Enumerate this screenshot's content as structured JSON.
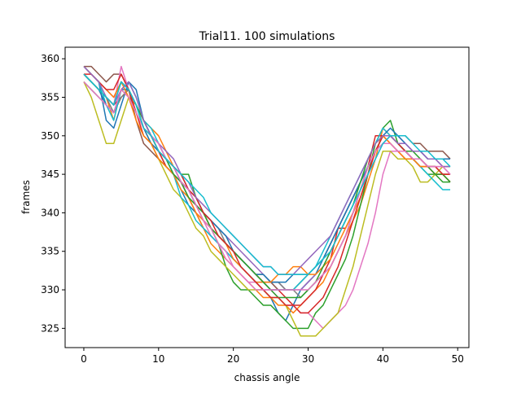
{
  "chart_data": {
    "type": "line",
    "title": "Trial11. 100 simulations",
    "xlabel": "chassis angle",
    "ylabel": "frames",
    "xlim": [
      -2.5,
      51.5
    ],
    "ylim": [
      322.5,
      361.5
    ],
    "xticks": [
      0,
      10,
      20,
      30,
      40,
      50
    ],
    "yticks": [
      325,
      330,
      335,
      340,
      345,
      350,
      355,
      360
    ],
    "grid": false,
    "x": [
      0,
      1,
      2,
      3,
      4,
      5,
      6,
      7,
      8,
      9,
      10,
      11,
      12,
      13,
      14,
      15,
      16,
      17,
      18,
      19,
      20,
      21,
      22,
      23,
      24,
      25,
      26,
      27,
      28,
      29,
      30,
      31,
      32,
      33,
      34,
      35,
      36,
      37,
      38,
      39,
      40,
      41,
      42,
      43,
      44,
      45,
      46,
      47,
      48,
      49
    ],
    "series": [
      {
        "color": "#1f77b4",
        "values": [
          359,
          358,
          357,
          352,
          351,
          354,
          357,
          356,
          352,
          350,
          348,
          346,
          345,
          343,
          341,
          340,
          338,
          337,
          336,
          335,
          334,
          333,
          332,
          331,
          330,
          329,
          327,
          326,
          328,
          330,
          331,
          332,
          334,
          336,
          338,
          340,
          342,
          344,
          346,
          348,
          350,
          350,
          349,
          348,
          347,
          347,
          346,
          346,
          345,
          345
        ]
      },
      {
        "color": "#ff7f0e",
        "values": [
          358,
          357,
          356,
          355,
          352,
          356,
          355,
          354,
          352,
          351,
          350,
          348,
          346,
          344,
          342,
          340,
          338,
          336,
          335,
          334,
          333,
          332,
          331,
          330,
          329,
          329,
          328,
          328,
          327,
          328,
          329,
          330,
          331,
          333,
          335,
          337,
          339,
          341,
          344,
          347,
          351,
          350,
          349,
          348,
          347,
          346,
          346,
          345,
          345,
          344
        ]
      },
      {
        "color": "#2ca02c",
        "values": [
          357,
          356,
          355,
          354,
          353,
          355,
          356,
          354,
          351,
          350,
          348,
          347,
          346,
          345,
          345,
          342,
          340,
          338,
          336,
          333,
          331,
          330,
          330,
          329,
          328,
          328,
          327,
          326,
          325,
          325,
          325,
          327,
          328,
          330,
          332,
          334,
          337,
          341,
          345,
          349,
          351,
          352,
          349,
          348,
          347,
          346,
          345,
          345,
          344,
          344
        ]
      },
      {
        "color": "#d62728",
        "values": [
          358,
          357,
          356,
          355,
          354,
          355,
          356,
          353,
          350,
          349,
          348,
          346,
          345,
          344,
          343,
          341,
          340,
          338,
          337,
          336,
          335,
          334,
          333,
          332,
          331,
          330,
          330,
          329,
          328,
          328,
          329,
          330,
          332,
          334,
          338,
          338,
          340,
          343,
          346,
          350,
          350,
          349,
          348,
          347,
          347,
          346,
          346,
          345,
          345,
          344
        ]
      },
      {
        "color": "#9467bd",
        "values": [
          359,
          358,
          357,
          356,
          355,
          357,
          356,
          354,
          352,
          350,
          349,
          347,
          346,
          344,
          343,
          341,
          340,
          339,
          338,
          337,
          336,
          335,
          334,
          333,
          332,
          331,
          331,
          330,
          330,
          330,
          331,
          332,
          333,
          335,
          337,
          339,
          341,
          343,
          345,
          347,
          349,
          350,
          350,
          349,
          348,
          348,
          347,
          347,
          346,
          346
        ]
      },
      {
        "color": "#8c564b",
        "values": [
          359,
          359,
          358,
          357,
          358,
          358,
          356,
          352,
          349,
          348,
          347,
          346,
          345,
          344,
          342,
          341,
          339,
          338,
          337,
          336,
          335,
          334,
          333,
          332,
          331,
          331,
          330,
          330,
          330,
          331,
          332,
          333,
          334,
          336,
          338,
          340,
          342,
          344,
          346,
          348,
          350,
          350,
          350,
          350,
          349,
          349,
          348,
          348,
          348,
          347
        ]
      },
      {
        "color": "#e377c2",
        "values": [
          358,
          357,
          356,
          355,
          354,
          359,
          356,
          354,
          352,
          350,
          348,
          347,
          346,
          344,
          342,
          340,
          339,
          337,
          336,
          334,
          333,
          332,
          331,
          331,
          330,
          330,
          329,
          328,
          328,
          327,
          327,
          326,
          325,
          326,
          327,
          328,
          330,
          333,
          336,
          340,
          345,
          348,
          348,
          348,
          347,
          347,
          346,
          346,
          346,
          345
        ]
      },
      {
        "color": "#7f7f7f",
        "values": [
          358,
          357,
          356,
          355,
          353,
          355,
          356,
          354,
          352,
          350,
          349,
          347,
          346,
          345,
          343,
          342,
          340,
          339,
          338,
          336,
          335,
          334,
          333,
          332,
          332,
          331,
          331,
          330,
          330,
          329,
          330,
          331,
          332,
          333,
          335,
          337,
          340,
          343,
          346,
          348,
          349,
          349,
          348,
          348,
          347,
          347,
          346,
          346,
          345,
          345
        ]
      },
      {
        "color": "#bcbd22",
        "values": [
          357,
          355,
          352,
          349,
          349,
          352,
          355,
          353,
          351,
          349,
          347,
          345,
          343,
          342,
          340,
          338,
          337,
          335,
          334,
          333,
          332,
          331,
          330,
          330,
          330,
          329,
          329,
          328,
          326,
          324,
          324,
          324,
          325,
          326,
          327,
          330,
          333,
          337,
          341,
          345,
          348,
          348,
          347,
          347,
          346,
          344,
          344,
          345,
          346,
          346
        ]
      },
      {
        "color": "#17becf",
        "values": [
          359,
          358,
          357,
          354,
          352,
          356,
          357,
          355,
          352,
          351,
          349,
          347,
          345,
          342,
          341,
          339,
          338,
          337,
          336,
          335,
          334,
          333,
          332,
          331,
          331,
          330,
          330,
          330,
          330,
          331,
          332,
          333,
          335,
          337,
          339,
          341,
          343,
          345,
          347,
          349,
          351,
          350,
          349,
          348,
          347,
          346,
          345,
          344,
          343,
          343
        ]
      },
      {
        "color": "#1f77b4",
        "values": [
          358,
          357,
          356,
          354,
          353,
          356,
          356,
          354,
          351,
          349,
          348,
          347,
          346,
          344,
          343,
          341,
          340,
          339,
          338,
          337,
          335,
          334,
          333,
          332,
          332,
          331,
          331,
          331,
          332,
          332,
          332,
          333,
          334,
          336,
          338,
          340,
          342,
          344,
          346,
          348,
          350,
          351,
          350,
          349,
          348,
          348,
          347,
          347,
          347,
          347
        ]
      },
      {
        "color": "#ff7f0e",
        "values": [
          359,
          358,
          357,
          356,
          355,
          357,
          355,
          352,
          350,
          349,
          347,
          346,
          345,
          343,
          342,
          340,
          339,
          338,
          337,
          336,
          334,
          333,
          332,
          331,
          331,
          331,
          332,
          332,
          333,
          333,
          332,
          332,
          333,
          334,
          336,
          338,
          340,
          342,
          345,
          348,
          350,
          349,
          348,
          347,
          347,
          346,
          346,
          346,
          345,
          345
        ]
      },
      {
        "color": "#2ca02c",
        "values": [
          358,
          357,
          356,
          355,
          354,
          357,
          356,
          354,
          352,
          350,
          348,
          347,
          345,
          344,
          342,
          341,
          340,
          338,
          337,
          336,
          335,
          334,
          333,
          332,
          331,
          330,
          329,
          329,
          329,
          329,
          330,
          331,
          333,
          335,
          337,
          339,
          341,
          344,
          347,
          349,
          350,
          350,
          349,
          348,
          348,
          347,
          346,
          345,
          345,
          344
        ]
      },
      {
        "color": "#d62728",
        "values": [
          358,
          358,
          357,
          356,
          356,
          358,
          356,
          353,
          351,
          350,
          348,
          347,
          346,
          345,
          343,
          342,
          340,
          339,
          337,
          336,
          335,
          333,
          332,
          331,
          330,
          329,
          329,
          328,
          328,
          327,
          327,
          328,
          329,
          331,
          333,
          336,
          339,
          342,
          345,
          348,
          350,
          350,
          349,
          348,
          347,
          347,
          346,
          346,
          345,
          345
        ]
      },
      {
        "color": "#9467bd",
        "values": [
          359,
          358,
          357,
          355,
          354,
          356,
          357,
          355,
          352,
          350,
          349,
          348,
          347,
          345,
          344,
          342,
          341,
          340,
          339,
          338,
          337,
          336,
          335,
          334,
          333,
          333,
          332,
          332,
          332,
          333,
          334,
          335,
          336,
          337,
          339,
          341,
          343,
          345,
          347,
          349,
          350,
          350,
          349,
          349,
          348,
          348,
          347,
          347,
          346,
          346
        ]
      },
      {
        "color": "#e377c2",
        "values": [
          357,
          356,
          355,
          354,
          353,
          356,
          355,
          353,
          351,
          350,
          349,
          347,
          346,
          344,
          343,
          341,
          339,
          338,
          336,
          335,
          333,
          332,
          331,
          330,
          330,
          330,
          330,
          330,
          330,
          330,
          330,
          331,
          332,
          333,
          335,
          337,
          340,
          343,
          346,
          348,
          349,
          349,
          348,
          348,
          347,
          347,
          346,
          346,
          346,
          345
        ]
      },
      {
        "color": "#17becf",
        "values": [
          358,
          357,
          356,
          355,
          354,
          357,
          356,
          354,
          351,
          350,
          348,
          347,
          346,
          345,
          344,
          343,
          342,
          340,
          339,
          338,
          337,
          336,
          335,
          334,
          333,
          333,
          332,
          332,
          332,
          332,
          332,
          333,
          334,
          335,
          337,
          339,
          341,
          343,
          345,
          347,
          349,
          350,
          350,
          350,
          349,
          348,
          348,
          347,
          347,
          346
        ]
      }
    ]
  }
}
